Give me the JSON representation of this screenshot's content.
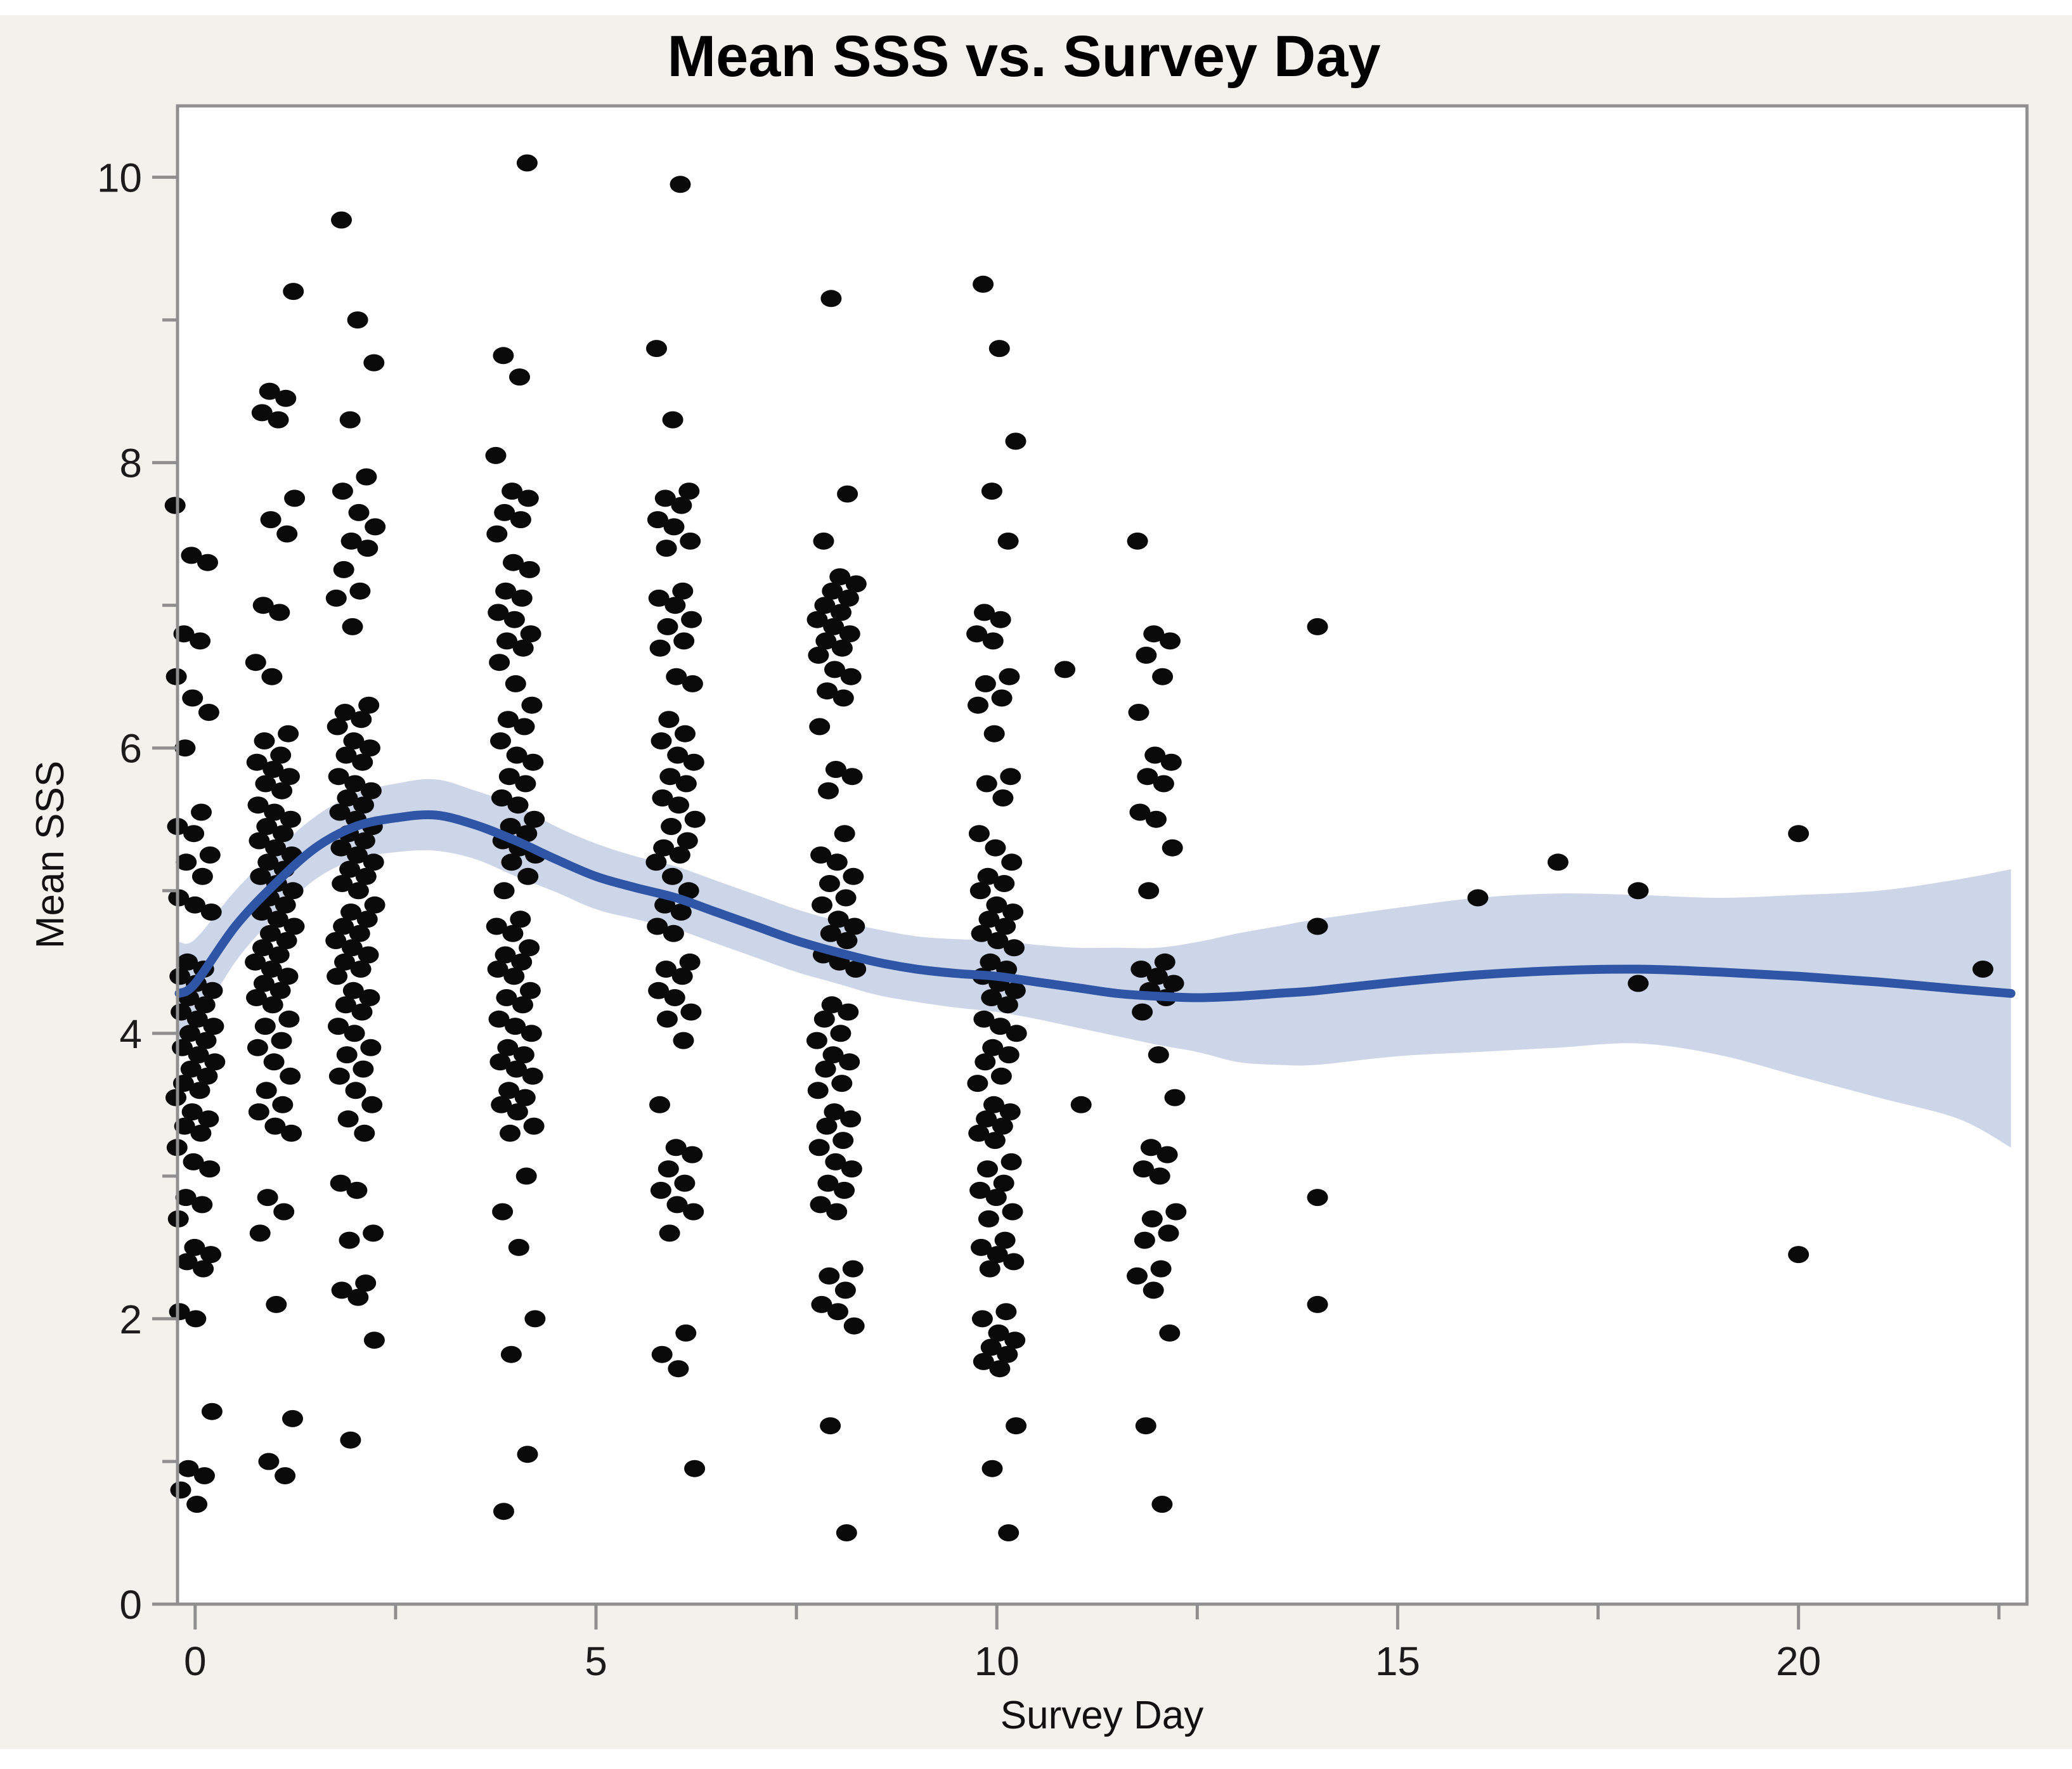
{
  "chart_data": {
    "type": "scatter",
    "title": "Mean SSS vs. Survey Day",
    "xlabel": "Survey Day",
    "ylabel": "Mean SSS",
    "xlim": [
      -0.22,
      22.85
    ],
    "ylim": [
      0,
      10.5
    ],
    "grid": "off",
    "legend": "none",
    "x_major_ticks": [
      0,
      5,
      10,
      15,
      20
    ],
    "x_minor_ticks": [
      2.5,
      7.5,
      12.5,
      17.5,
      22.5
    ],
    "y_major_ticks": [
      0,
      2,
      4,
      6,
      8,
      10
    ],
    "y_minor_ticks": [
      1,
      3,
      5,
      7,
      9
    ],
    "colors": {
      "outer_background": "#f2f1ec",
      "plot_background": "#ffffff",
      "frame_and_ticks": "#8f8f8f",
      "point": "#0a0a0a",
      "smoother_line": "#2f56a6",
      "confidence_band": "#cdd5e8",
      "text": "#1b1b1b"
    },
    "smoother": {
      "x": [
        -0.2,
        0,
        0.5,
        1,
        1.5,
        2,
        2.5,
        3,
        3.5,
        4,
        4.5,
        5,
        5.5,
        6,
        6.5,
        7,
        7.5,
        8,
        8.5,
        9,
        9.5,
        10,
        10.5,
        11,
        11.5,
        12,
        12.5,
        13,
        13.5,
        14,
        15,
        16,
        17,
        18,
        19,
        20,
        21,
        22,
        22.65
      ],
      "y": [
        4.28,
        4.35,
        4.75,
        5.05,
        5.3,
        5.45,
        5.51,
        5.53,
        5.46,
        5.35,
        5.22,
        5.1,
        5.02,
        4.95,
        4.85,
        4.75,
        4.65,
        4.57,
        4.5,
        4.45,
        4.42,
        4.4,
        4.36,
        4.32,
        4.28,
        4.26,
        4.25,
        4.26,
        4.28,
        4.3,
        4.36,
        4.41,
        4.44,
        4.45,
        4.43,
        4.4,
        4.36,
        4.31,
        4.28
      ],
      "upper": [
        4.64,
        4.66,
        5.0,
        5.28,
        5.52,
        5.68,
        5.75,
        5.78,
        5.7,
        5.6,
        5.45,
        5.33,
        5.24,
        5.17,
        5.07,
        4.97,
        4.87,
        4.79,
        4.73,
        4.68,
        4.66,
        4.65,
        4.62,
        4.6,
        4.6,
        4.6,
        4.64,
        4.7,
        4.75,
        4.8,
        4.88,
        4.95,
        4.98,
        4.97,
        4.95,
        4.97,
        5.0,
        5.08,
        5.15
      ],
      "lower": [
        3.92,
        4.04,
        4.5,
        4.82,
        5.08,
        5.22,
        5.27,
        5.28,
        5.22,
        5.1,
        4.99,
        4.87,
        4.8,
        4.73,
        4.63,
        4.53,
        4.43,
        4.35,
        4.27,
        4.22,
        4.18,
        4.15,
        4.1,
        4.04,
        3.98,
        3.92,
        3.87,
        3.8,
        3.78,
        3.78,
        3.84,
        3.87,
        3.9,
        3.93,
        3.85,
        3.7,
        3.55,
        3.4,
        3.2
      ]
    },
    "points_by_day": [
      {
        "day": 0,
        "values": [
          7.7,
          7.35,
          7.3,
          6.8,
          6.75,
          6.5,
          6.35,
          6.25,
          6.0,
          5.55,
          5.45,
          5.4,
          5.25,
          5.2,
          5.1,
          4.95,
          4.9,
          4.85,
          4.5,
          4.45,
          4.4,
          4.35,
          4.3,
          4.25,
          4.2,
          4.15,
          4.1,
          4.05,
          4.0,
          3.95,
          3.9,
          3.85,
          3.8,
          3.75,
          3.7,
          3.65,
          3.6,
          3.55,
          3.45,
          3.4,
          3.35,
          3.3,
          3.2,
          3.1,
          3.05,
          2.85,
          2.8,
          2.7,
          2.5,
          2.45,
          2.4,
          2.35,
          2.05,
          2.0,
          1.35,
          0.95,
          0.9,
          0.8,
          0.7
        ]
      },
      {
        "day": 1,
        "values": [
          9.2,
          8.5,
          8.45,
          8.35,
          8.3,
          7.75,
          7.6,
          7.5,
          7.0,
          6.95,
          6.6,
          6.5,
          6.1,
          6.05,
          5.95,
          5.9,
          5.85,
          5.8,
          5.75,
          5.7,
          5.6,
          5.55,
          5.5,
          5.45,
          5.4,
          5.35,
          5.3,
          5.25,
          5.2,
          5.15,
          5.1,
          5.05,
          5.0,
          4.95,
          4.9,
          4.85,
          4.8,
          4.75,
          4.7,
          4.65,
          4.6,
          4.55,
          4.5,
          4.45,
          4.4,
          4.35,
          4.3,
          4.25,
          4.2,
          4.1,
          4.05,
          3.95,
          3.9,
          3.8,
          3.7,
          3.6,
          3.5,
          3.45,
          3.35,
          3.3,
          2.85,
          2.75,
          2.6,
          2.1,
          1.3,
          1.0,
          0.9
        ]
      },
      {
        "day": 2,
        "values": [
          9.7,
          9.0,
          8.7,
          8.3,
          7.9,
          7.8,
          7.65,
          7.55,
          7.45,
          7.4,
          7.25,
          7.1,
          7.05,
          6.85,
          6.3,
          6.25,
          6.2,
          6.15,
          6.05,
          6.0,
          5.95,
          5.9,
          5.8,
          5.75,
          5.7,
          5.65,
          5.6,
          5.55,
          5.5,
          5.45,
          5.4,
          5.35,
          5.3,
          5.25,
          5.2,
          5.15,
          5.1,
          5.05,
          5.0,
          4.9,
          4.85,
          4.8,
          4.75,
          4.7,
          4.65,
          4.6,
          4.55,
          4.5,
          4.45,
          4.4,
          4.3,
          4.25,
          4.2,
          4.15,
          4.05,
          4.0,
          3.9,
          3.85,
          3.75,
          3.7,
          3.6,
          3.5,
          3.4,
          3.3,
          2.95,
          2.9,
          2.6,
          2.55,
          2.25,
          2.2,
          2.15,
          1.85,
          1.15
        ]
      },
      {
        "day": 4,
        "values": [
          10.1,
          8.75,
          8.6,
          8.05,
          7.8,
          7.75,
          7.65,
          7.6,
          7.5,
          7.3,
          7.25,
          7.1,
          7.05,
          6.95,
          6.9,
          6.8,
          6.75,
          6.7,
          6.6,
          6.45,
          6.3,
          6.2,
          6.15,
          6.05,
          5.95,
          5.9,
          5.8,
          5.75,
          5.65,
          5.6,
          5.5,
          5.45,
          5.4,
          5.35,
          5.3,
          5.25,
          5.2,
          5.1,
          5.0,
          4.8,
          4.75,
          4.7,
          4.6,
          4.55,
          4.5,
          4.45,
          4.4,
          4.3,
          4.25,
          4.2,
          4.1,
          4.05,
          4.0,
          3.9,
          3.85,
          3.8,
          3.75,
          3.7,
          3.6,
          3.55,
          3.5,
          3.45,
          3.35,
          3.3,
          3.0,
          2.75,
          2.5,
          2.0,
          1.75,
          1.05,
          0.65
        ]
      },
      {
        "day": 6,
        "values": [
          9.95,
          8.8,
          8.3,
          7.8,
          7.75,
          7.7,
          7.6,
          7.55,
          7.45,
          7.4,
          7.1,
          7.05,
          7.0,
          6.9,
          6.85,
          6.75,
          6.7,
          6.5,
          6.45,
          6.2,
          6.1,
          6.05,
          5.95,
          5.9,
          5.8,
          5.75,
          5.65,
          5.6,
          5.5,
          5.45,
          5.35,
          5.3,
          5.25,
          5.2,
          5.1,
          5.0,
          4.9,
          4.85,
          4.75,
          4.7,
          4.5,
          4.45,
          4.4,
          4.3,
          4.25,
          4.15,
          4.1,
          3.95,
          3.5,
          3.2,
          3.15,
          3.05,
          2.95,
          2.9,
          2.8,
          2.75,
          2.6,
          1.9,
          1.75,
          1.65,
          0.95
        ]
      },
      {
        "day": 8,
        "values": [
          9.15,
          7.78,
          7.45,
          7.2,
          7.15,
          7.1,
          7.05,
          7.0,
          6.95,
          6.9,
          6.85,
          6.8,
          6.75,
          6.7,
          6.65,
          6.55,
          6.5,
          6.4,
          6.35,
          6.15,
          5.85,
          5.8,
          5.7,
          5.4,
          5.25,
          5.2,
          5.1,
          5.05,
          4.95,
          4.9,
          4.8,
          4.75,
          4.7,
          4.65,
          4.55,
          4.5,
          4.45,
          4.2,
          4.15,
          4.1,
          4.0,
          3.95,
          3.85,
          3.8,
          3.75,
          3.65,
          3.6,
          3.45,
          3.4,
          3.35,
          3.25,
          3.2,
          3.1,
          3.05,
          2.95,
          2.9,
          2.8,
          2.75,
          2.35,
          2.3,
          2.2,
          2.1,
          2.05,
          1.95,
          1.25,
          0.5
        ]
      },
      {
        "day": 10,
        "values": [
          9.25,
          8.8,
          8.15,
          7.8,
          7.45,
          6.95,
          6.9,
          6.8,
          6.75,
          6.5,
          6.45,
          6.35,
          6.3,
          6.1,
          5.8,
          5.75,
          5.65,
          5.4,
          5.3,
          5.2,
          5.1,
          5.05,
          5.0,
          4.9,
          4.85,
          4.8,
          4.75,
          4.7,
          4.65,
          4.6,
          4.5,
          4.45,
          4.4,
          4.35,
          4.3,
          4.25,
          4.2,
          4.1,
          4.05,
          4.0,
          3.9,
          3.85,
          3.8,
          3.7,
          3.65,
          3.5,
          3.45,
          3.4,
          3.35,
          3.3,
          3.25,
          3.1,
          3.05,
          2.95,
          2.9,
          2.85,
          2.75,
          2.7,
          2.55,
          2.5,
          2.45,
          2.4,
          2.35,
          2.05,
          2.0,
          1.9,
          1.85,
          1.8,
          1.75,
          1.7,
          1.65,
          1.25,
          0.95,
          0.5
        ]
      },
      {
        "day": 11,
        "values": [
          6.55,
          3.5
        ]
      },
      {
        "day": 12,
        "values": [
          7.45,
          6.8,
          6.75,
          6.65,
          6.5,
          6.25,
          5.95,
          5.9,
          5.8,
          5.75,
          5.55,
          5.5,
          5.3,
          5.0,
          4.5,
          4.45,
          4.4,
          4.35,
          4.3,
          4.25,
          4.15,
          3.85,
          3.55,
          3.2,
          3.15,
          3.05,
          3.0,
          2.75,
          2.7,
          2.6,
          2.55,
          2.35,
          2.3,
          2.2,
          1.9,
          1.25,
          0.7
        ]
      },
      {
        "day": 14,
        "values": [
          6.85,
          4.75,
          2.85,
          2.1
        ]
      },
      {
        "day": 16,
        "values": [
          4.95
        ]
      },
      {
        "day": 17,
        "values": [
          5.2
        ]
      },
      {
        "day": 18,
        "values": [
          5.0,
          4.35
        ]
      },
      {
        "day": 20,
        "values": [
          5.4,
          2.45
        ]
      },
      {
        "day": 22.3,
        "values": [
          4.45
        ]
      }
    ]
  }
}
